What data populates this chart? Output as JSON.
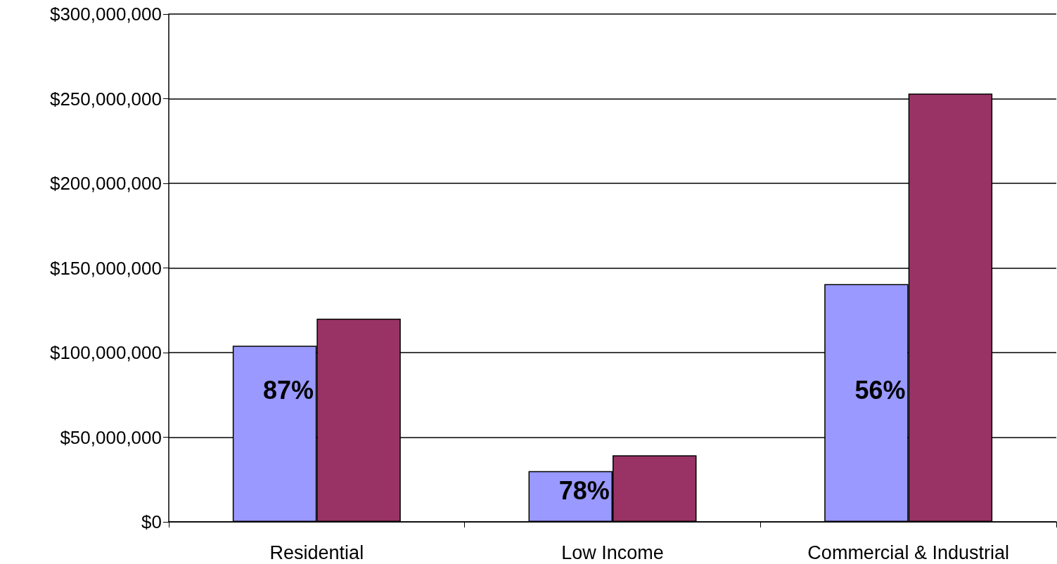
{
  "chart_data": {
    "type": "bar",
    "categories": [
      "Residential",
      "Low Income",
      "Commercial & Industrial"
    ],
    "series": [
      {
        "color": "#9999ff",
        "values": [
          104000000,
          30000000,
          140500000
        ]
      },
      {
        "color": "#993366",
        "values": [
          120000000,
          39300000,
          253000000
        ]
      }
    ],
    "annotations": [
      {
        "text": "87%",
        "x": "Residential",
        "y": 78000000
      },
      {
        "text": "78%",
        "x": "Low Income",
        "y": 18500000
      },
      {
        "text": "56%",
        "x": "Commercial & Industrial",
        "y": 78000000
      }
    ],
    "ylim": [
      0,
      300000000
    ],
    "yticks": [
      {
        "value": 0,
        "label": "$0"
      },
      {
        "value": 50000000,
        "label": "$50,000,000"
      },
      {
        "value": 100000000,
        "label": "$100,000,000"
      },
      {
        "value": 150000000,
        "label": "$150,000,000"
      },
      {
        "value": 200000000,
        "label": "$200,000,000"
      },
      {
        "value": 250000000,
        "label": "$250,000,000"
      },
      {
        "value": 300000000,
        "label": "$300,000,000"
      }
    ],
    "grid": "y"
  }
}
